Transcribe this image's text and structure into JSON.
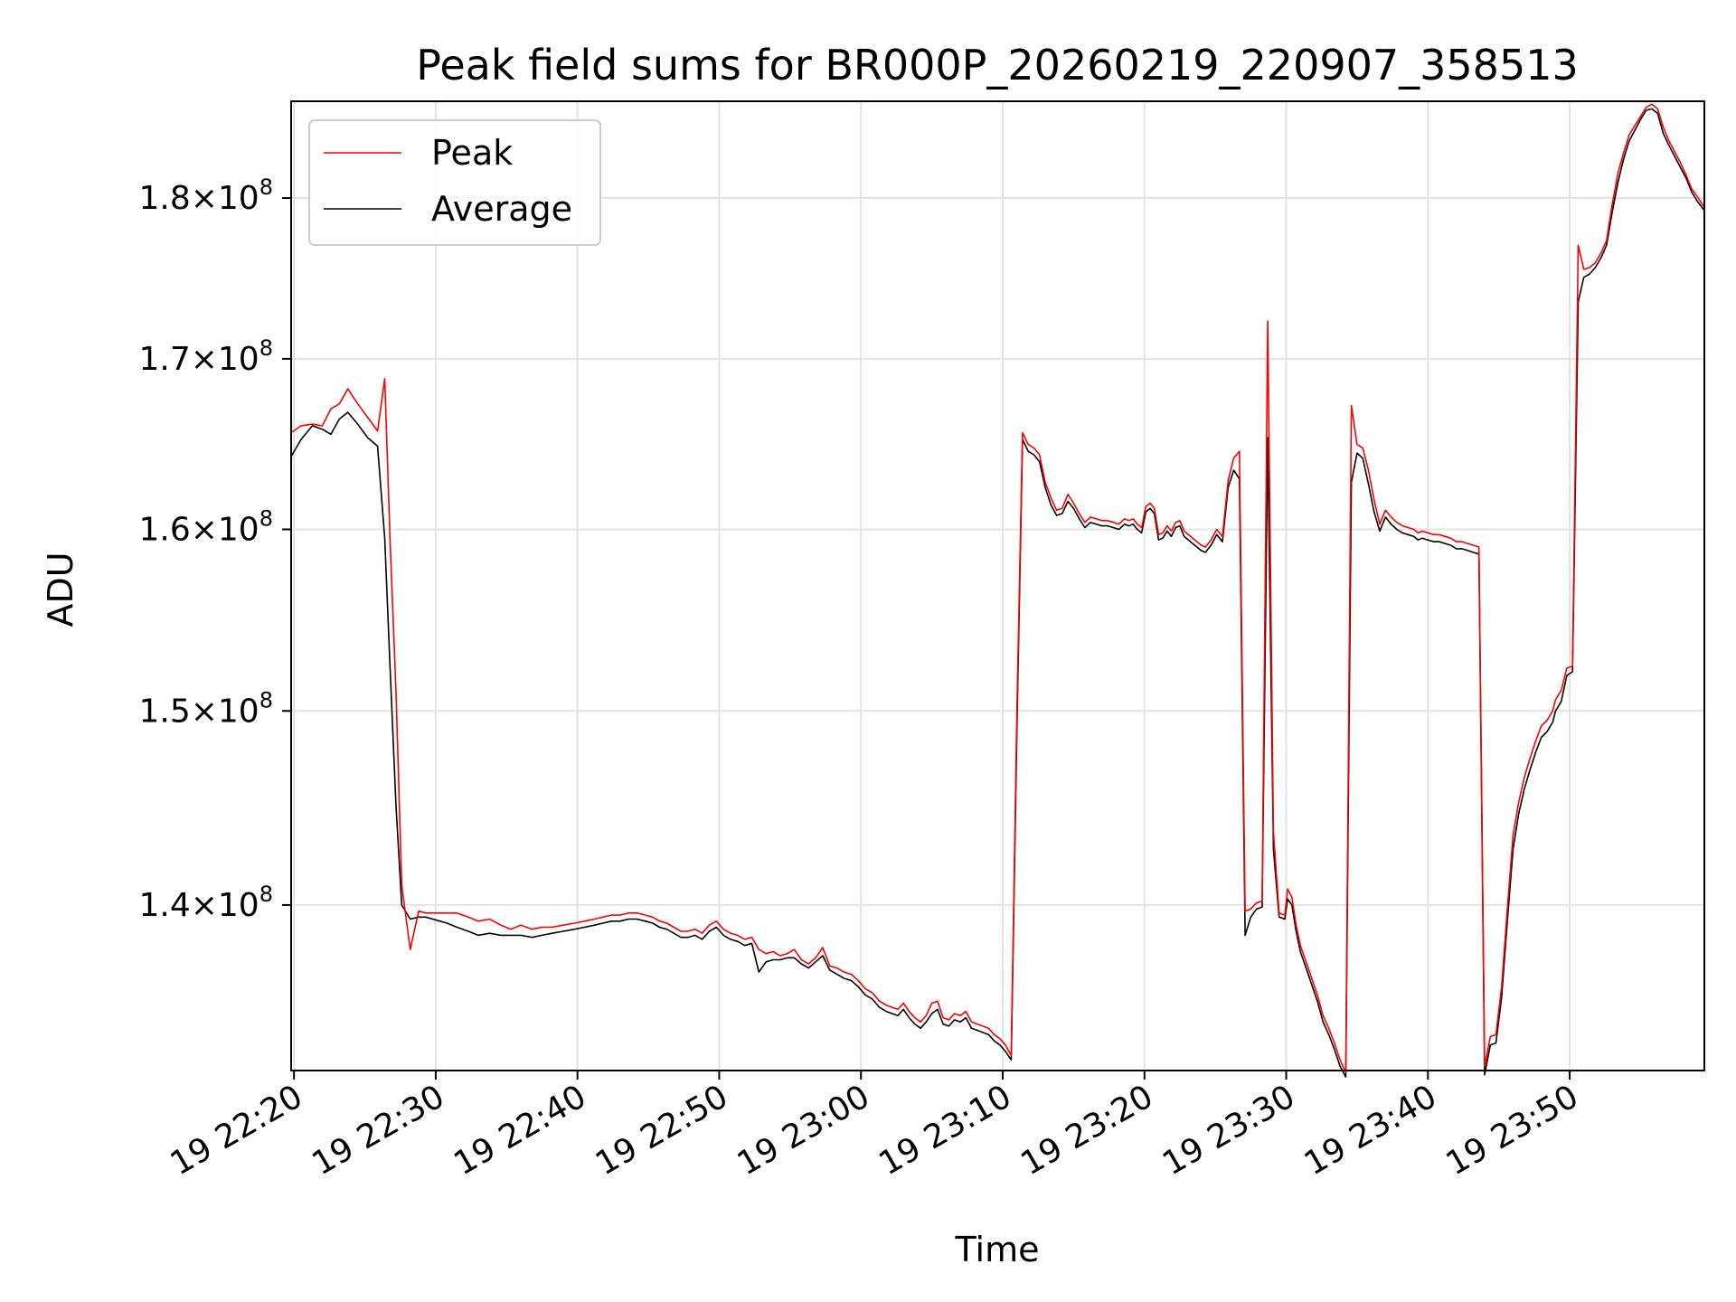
{
  "chart_data": {
    "type": "line",
    "title": "Peak field sums for BR000P_20260219_220907_358513",
    "xlabel": "Time",
    "ylabel": "ADU",
    "x_unit": "minutes after 19 22:00",
    "xlim": [
      19.8,
      119.5
    ],
    "ylim": [
      132000000,
      186300000
    ],
    "y_scale": "log",
    "grid": true,
    "legend_position": "top-left",
    "x_ticks": [
      {
        "value": 20,
        "label": "19 22:20"
      },
      {
        "value": 30,
        "label": "19 22:30"
      },
      {
        "value": 40,
        "label": "19 22:40"
      },
      {
        "value": 50,
        "label": "19 22:50"
      },
      {
        "value": 60,
        "label": "19 23:00"
      },
      {
        "value": 70,
        "label": "19 23:10"
      },
      {
        "value": 80,
        "label": "19 23:20"
      },
      {
        "value": 90,
        "label": "19 23:30"
      },
      {
        "value": 100,
        "label": "19 23:40"
      },
      {
        "value": 110,
        "label": "19 23:50"
      }
    ],
    "y_ticks": [
      {
        "value": 140000000,
        "mantissa": "1.4",
        "exponent": "8"
      },
      {
        "value": 150000000,
        "mantissa": "1.5",
        "exponent": "8"
      },
      {
        "value": 160000000,
        "mantissa": "1.6",
        "exponent": "8"
      },
      {
        "value": 170000000,
        "mantissa": "1.7",
        "exponent": "8"
      },
      {
        "value": 180000000,
        "mantissa": "1.8",
        "exponent": "8"
      }
    ],
    "series": [
      {
        "name": "Peak",
        "color": "#ff0000",
        "x": [
          19.8,
          20.5,
          21.3,
          22.0,
          22.6,
          23.2,
          23.8,
          24.5,
          25.2,
          25.9,
          26.4,
          26.8,
          27.2,
          27.6,
          28.2,
          28.8,
          29.3,
          29.8,
          30.3,
          30.8,
          31.5,
          32.3,
          33.0,
          33.8,
          34.6,
          35.3,
          36.0,
          36.8,
          37.5,
          38.2,
          39.0,
          39.8,
          40.5,
          41.2,
          41.8,
          42.4,
          43.0,
          43.6,
          44.2,
          44.8,
          45.3,
          45.8,
          46.3,
          46.8,
          47.3,
          47.8,
          48.3,
          48.8,
          49.3,
          49.8,
          50.3,
          50.8,
          51.3,
          51.8,
          52.3,
          52.8,
          53.3,
          53.8,
          54.3,
          54.8,
          55.3,
          55.8,
          56.3,
          56.8,
          57.3,
          57.8,
          58.3,
          58.8,
          59.3,
          59.8,
          60.3,
          60.8,
          61.3,
          61.8,
          62.2,
          62.6,
          63.0,
          63.4,
          63.8,
          64.2,
          64.6,
          65.0,
          65.4,
          65.8,
          66.2,
          66.6,
          67.0,
          67.4,
          67.8,
          68.2,
          68.6,
          69.0,
          69.4,
          69.8,
          70.2,
          70.6,
          71.0,
          71.4,
          71.8,
          72.2,
          72.6,
          73.0,
          73.4,
          73.8,
          74.2,
          74.6,
          75.0,
          75.4,
          75.8,
          76.2,
          76.6,
          77.0,
          77.4,
          77.8,
          78.2,
          78.6,
          78.9,
          79.2,
          79.5,
          79.8,
          80.1,
          80.4,
          80.7,
          81.0,
          81.3,
          81.6,
          81.9,
          82.2,
          82.5,
          82.8,
          83.1,
          83.4,
          83.7,
          84.0,
          84.3,
          84.7,
          85.1,
          85.5,
          85.9,
          86.3,
          86.7,
          87.1,
          87.5,
          87.9,
          88.3,
          88.7,
          89.1,
          89.5,
          89.9,
          90.1,
          90.4,
          90.7,
          91.0,
          91.4,
          91.8,
          92.2,
          92.6,
          93.0,
          93.4,
          93.8,
          94.2,
          94.6,
          95.0,
          95.4,
          95.8,
          96.2,
          96.6,
          97.0,
          97.4,
          97.8,
          98.2,
          98.6,
          99.0,
          99.3,
          99.6,
          100.0,
          100.4,
          100.8,
          101.2,
          101.6,
          102.0,
          102.4,
          102.8,
          103.2,
          103.6,
          104.0,
          104.4,
          104.8,
          105.2,
          105.6,
          106.0,
          106.4,
          106.8,
          107.2,
          107.6,
          108.0,
          108.4,
          108.8,
          109.0,
          109.4,
          109.8,
          110.2,
          110.6,
          111.0,
          111.4,
          111.8,
          112.2,
          112.6,
          113.0,
          113.4,
          113.8,
          114.2,
          114.6,
          115.0,
          115.4,
          115.8,
          116.2,
          116.6,
          117.0,
          117.4,
          117.8,
          118.2,
          118.6,
          119.0,
          119.5
        ],
        "values": [
          165600000,
          166000000,
          166100000,
          166000000,
          167000000,
          167300000,
          168200000,
          167300000,
          166500000,
          165700000,
          168800000,
          159000000,
          151000000,
          141000000,
          137800000,
          139700000,
          139600000,
          139600000,
          139600000,
          139600000,
          139600000,
          139400000,
          139200000,
          139300000,
          139000000,
          138800000,
          139000000,
          138800000,
          138900000,
          138900000,
          139000000,
          139100000,
          139200000,
          139300000,
          139400000,
          139500000,
          139500000,
          139600000,
          139600000,
          139500000,
          139400000,
          139200000,
          139100000,
          138900000,
          138700000,
          138700000,
          138800000,
          138600000,
          139000000,
          139200000,
          138800000,
          138600000,
          138500000,
          138300000,
          138400000,
          137800000,
          137600000,
          137700000,
          137500000,
          137600000,
          137800000,
          137300000,
          137100000,
          137400000,
          137900000,
          137000000,
          136900000,
          136700000,
          136600000,
          136300000,
          135900000,
          135700000,
          135300000,
          135100000,
          135000000,
          134900000,
          135200000,
          134800000,
          134500000,
          134300000,
          134600000,
          135200000,
          135300000,
          134500000,
          134400000,
          134700000,
          134600000,
          134800000,
          134300000,
          134200000,
          134100000,
          134000000,
          133700000,
          133500000,
          133200000,
          132700000,
          150000000,
          165600000,
          164900000,
          164700000,
          164300000,
          162700000,
          161800000,
          161100000,
          161200000,
          162000000,
          161500000,
          160900000,
          160400000,
          160700000,
          160600000,
          160500000,
          160500000,
          160400000,
          160300000,
          160600000,
          160500000,
          160600000,
          160300000,
          160100000,
          161300000,
          161500000,
          161200000,
          159700000,
          159800000,
          160200000,
          159900000,
          160400000,
          160500000,
          159900000,
          159700000,
          159500000,
          159300000,
          159100000,
          159000000,
          159400000,
          160000000,
          159600000,
          162800000,
          164100000,
          164500000,
          139700000,
          139800000,
          140100000,
          140200000,
          172300000,
          143700000,
          139600000,
          139500000,
          140800000,
          140400000,
          139000000,
          138000000,
          137200000,
          136400000,
          135600000,
          134600000,
          134000000,
          133300000,
          132500000,
          131900000,
          167200000,
          164900000,
          164700000,
          163400000,
          161700000,
          160300000,
          161100000,
          160700000,
          160400000,
          160200000,
          160100000,
          160000000,
          159800000,
          159900000,
          159800000,
          159700000,
          159700000,
          159600000,
          159500000,
          159300000,
          159300000,
          159200000,
          159100000,
          159000000,
          132200000,
          133600000,
          133700000,
          136000000,
          139800000,
          143500000,
          145200000,
          146500000,
          147500000,
          148400000,
          149200000,
          149500000,
          150000000,
          150600000,
          151100000,
          152300000,
          152400000,
          177000000,
          175500000,
          175600000,
          175900000,
          176500000,
          177300000,
          179600000,
          181600000,
          182900000,
          184100000,
          184700000,
          185300000,
          185900000,
          186100000,
          185800000,
          184600000,
          183700000,
          183000000,
          182300000,
          181500000,
          180600000,
          180100000,
          179400000
        ]
      },
      {
        "name": "Average",
        "color": "#000000",
        "x": [
          19.8,
          20.5,
          21.3,
          22.0,
          22.6,
          23.2,
          23.8,
          24.5,
          25.2,
          25.9,
          26.4,
          26.8,
          27.2,
          27.6,
          28.2,
          28.8,
          29.3,
          29.8,
          30.3,
          30.8,
          31.5,
          32.3,
          33.0,
          33.8,
          34.6,
          35.3,
          36.0,
          36.8,
          37.5,
          38.2,
          39.0,
          39.8,
          40.5,
          41.2,
          41.8,
          42.4,
          43.0,
          43.6,
          44.2,
          44.8,
          45.3,
          45.8,
          46.3,
          46.8,
          47.3,
          47.8,
          48.3,
          48.8,
          49.3,
          49.8,
          50.3,
          50.8,
          51.3,
          51.8,
          52.3,
          52.8,
          53.3,
          53.8,
          54.3,
          54.8,
          55.3,
          55.8,
          56.3,
          56.8,
          57.3,
          57.8,
          58.3,
          58.8,
          59.3,
          59.8,
          60.3,
          60.8,
          61.3,
          61.8,
          62.2,
          62.6,
          63.0,
          63.4,
          63.8,
          64.2,
          64.6,
          65.0,
          65.4,
          65.8,
          66.2,
          66.6,
          67.0,
          67.4,
          67.8,
          68.2,
          68.6,
          69.0,
          69.4,
          69.8,
          70.2,
          70.6,
          71.0,
          71.4,
          71.8,
          72.2,
          72.6,
          73.0,
          73.4,
          73.8,
          74.2,
          74.6,
          75.0,
          75.4,
          75.8,
          76.2,
          76.6,
          77.0,
          77.4,
          77.8,
          78.2,
          78.6,
          78.9,
          79.2,
          79.5,
          79.8,
          80.1,
          80.4,
          80.7,
          81.0,
          81.3,
          81.6,
          81.9,
          82.2,
          82.5,
          82.8,
          83.1,
          83.4,
          83.7,
          84.0,
          84.3,
          84.7,
          85.1,
          85.5,
          85.9,
          86.3,
          86.7,
          87.1,
          87.5,
          87.9,
          88.3,
          88.7,
          89.1,
          89.5,
          89.9,
          90.1,
          90.4,
          90.7,
          91.0,
          91.4,
          91.8,
          92.2,
          92.6,
          93.0,
          93.4,
          93.8,
          94.2,
          94.6,
          95.0,
          95.4,
          95.8,
          96.2,
          96.6,
          97.0,
          97.4,
          97.8,
          98.2,
          98.6,
          99.0,
          99.3,
          99.6,
          100.0,
          100.4,
          100.8,
          101.2,
          101.6,
          102.0,
          102.4,
          102.8,
          103.2,
          103.6,
          104.0,
          104.4,
          104.8,
          105.2,
          105.6,
          106.0,
          106.4,
          106.8,
          107.2,
          107.6,
          108.0,
          108.4,
          108.8,
          109.0,
          109.4,
          109.8,
          110.2,
          110.6,
          111.0,
          111.4,
          111.8,
          112.2,
          112.6,
          113.0,
          113.4,
          113.8,
          114.2,
          114.6,
          115.0,
          115.4,
          115.8,
          116.2,
          116.6,
          117.0,
          117.4,
          117.8,
          118.2,
          118.6,
          119.0,
          119.5
        ],
        "values": [
          164200000,
          165200000,
          166000000,
          165800000,
          165500000,
          166400000,
          166800000,
          166100000,
          165300000,
          164800000,
          159500000,
          152000000,
          145000000,
          140000000,
          139300000,
          139400000,
          139400000,
          139300000,
          139200000,
          139100000,
          138900000,
          138700000,
          138500000,
          138600000,
          138500000,
          138500000,
          138500000,
          138400000,
          138500000,
          138600000,
          138700000,
          138800000,
          138900000,
          139000000,
          139100000,
          139200000,
          139200000,
          139300000,
          139300000,
          139200000,
          139100000,
          138900000,
          138800000,
          138600000,
          138400000,
          138400000,
          138500000,
          138300000,
          138700000,
          138900000,
          138500000,
          138300000,
          138200000,
          138000000,
          138100000,
          136700000,
          137200000,
          137300000,
          137300000,
          137400000,
          137400000,
          137100000,
          136900000,
          137200000,
          137500000,
          136800000,
          136600000,
          136400000,
          136300000,
          136000000,
          135600000,
          135400000,
          135000000,
          134800000,
          134700000,
          134600000,
          134900000,
          134500000,
          134200000,
          134000000,
          134300000,
          134700000,
          134900000,
          134200000,
          134100000,
          134400000,
          134300000,
          134500000,
          134000000,
          133900000,
          133800000,
          133700000,
          133400000,
          133200000,
          132900000,
          132500000,
          149000000,
          165200000,
          164500000,
          164300000,
          163900000,
          162400000,
          161400000,
          160800000,
          160900000,
          161600000,
          161200000,
          160600000,
          160100000,
          160400000,
          160300000,
          160200000,
          160200000,
          160100000,
          160000000,
          160300000,
          160200000,
          160300000,
          160000000,
          159800000,
          161000000,
          161200000,
          160900000,
          159400000,
          159500000,
          159900000,
          159600000,
          160100000,
          160200000,
          159600000,
          159400000,
          159200000,
          159000000,
          158800000,
          158700000,
          159100000,
          159700000,
          159300000,
          162400000,
          163400000,
          162900000,
          138500000,
          139400000,
          139800000,
          139900000,
          165300000,
          142800000,
          139400000,
          139300000,
          140300000,
          140000000,
          138700000,
          137700000,
          136900000,
          136100000,
          135300000,
          134300000,
          133700000,
          133000000,
          132200000,
          131700000,
          162700000,
          164400000,
          164100000,
          162600000,
          161000000,
          159900000,
          160700000,
          160300000,
          160000000,
          159800000,
          159700000,
          159600000,
          159400000,
          159500000,
          159400000,
          159300000,
          159300000,
          159200000,
          159100000,
          158900000,
          158900000,
          158800000,
          158700000,
          158600000,
          131800000,
          133200000,
          133300000,
          135500000,
          139200000,
          142800000,
          144600000,
          145900000,
          146900000,
          147800000,
          148600000,
          148900000,
          149400000,
          150000000,
          150500000,
          151900000,
          152100000,
          173500000,
          175000000,
          175200000,
          175600000,
          176200000,
          177000000,
          179100000,
          181000000,
          182500000,
          183700000,
          184400000,
          185100000,
          185700000,
          185800000,
          185500000,
          184200000,
          183400000,
          182700000,
          182000000,
          181300000,
          180400000,
          179800000,
          179200000
        ]
      }
    ]
  }
}
